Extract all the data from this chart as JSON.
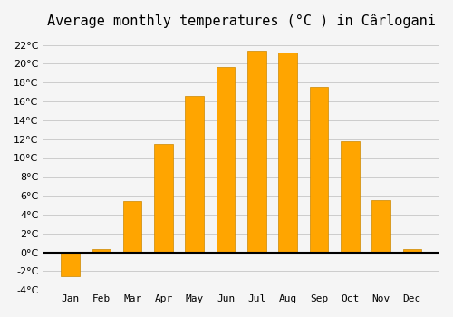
{
  "title": "Average monthly temperatures (°C ) in Cârlogani",
  "months": [
    "Jan",
    "Feb",
    "Mar",
    "Apr",
    "May",
    "Jun",
    "Jul",
    "Aug",
    "Sep",
    "Oct",
    "Nov",
    "Dec"
  ],
  "values": [
    -2.5,
    0.3,
    5.4,
    11.5,
    16.6,
    19.6,
    21.4,
    21.2,
    17.5,
    11.8,
    5.5,
    0.3
  ],
  "bar_color": "#FFA500",
  "bar_edge_color": "#CC8800",
  "background_color": "#F5F5F5",
  "grid_color": "#CCCCCC",
  "ylim": [
    -4,
    23
  ],
  "yticks": [
    -4,
    -2,
    0,
    2,
    4,
    6,
    8,
    10,
    12,
    14,
    16,
    18,
    20,
    22
  ],
  "zero_line_color": "#000000",
  "title_fontsize": 11,
  "tick_fontsize": 8
}
